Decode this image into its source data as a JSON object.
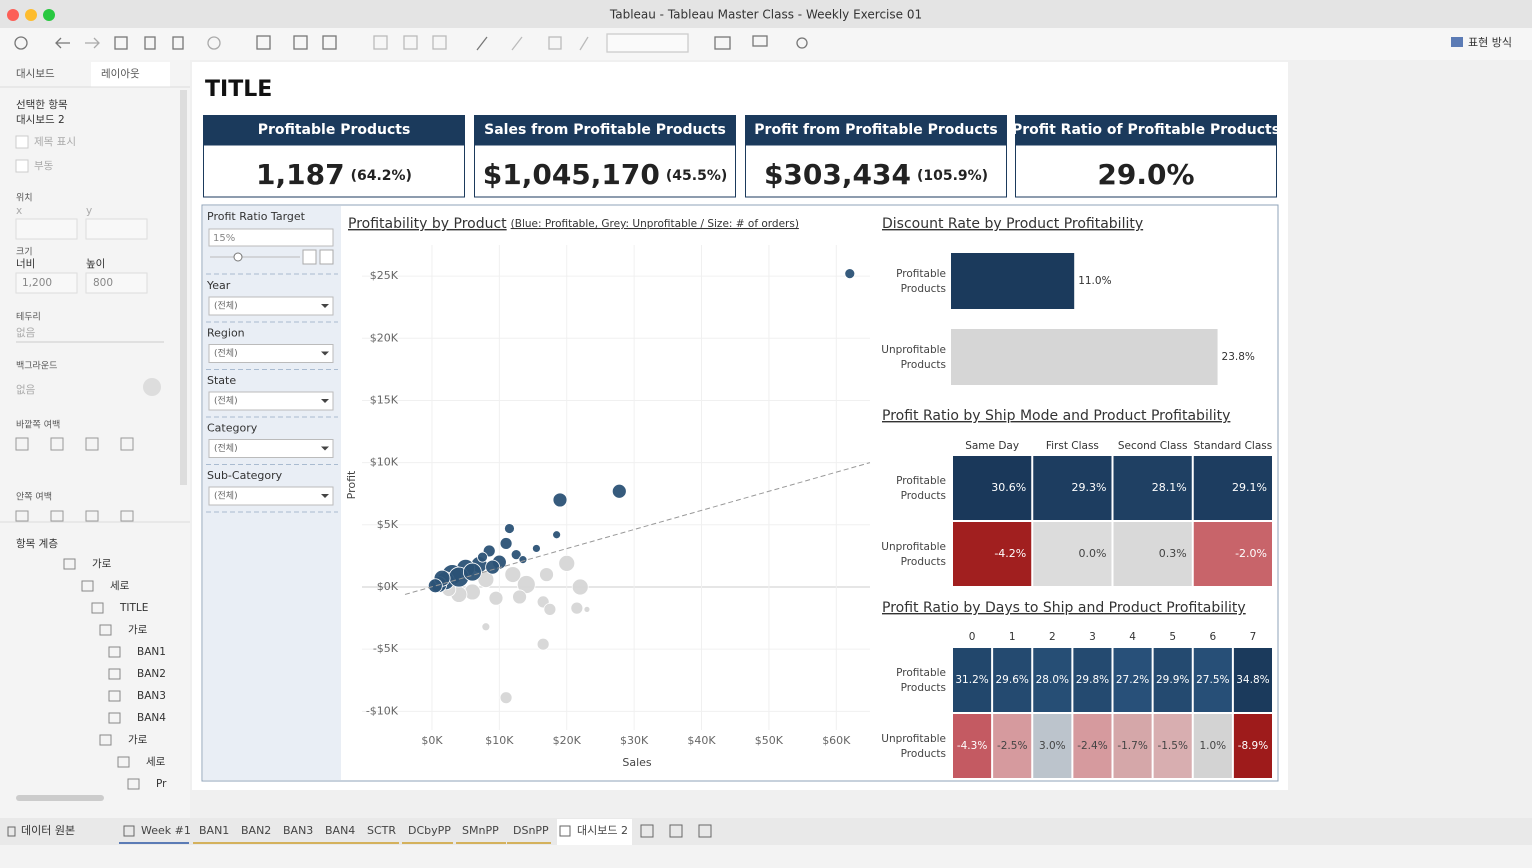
{
  "window": {
    "title": "Tableau - Tableau Master Class - Weekly Exercise 01",
    "presentation": "표현 방식"
  },
  "side_panel": {
    "tabs": [
      "대시보드",
      "레이아웃"
    ],
    "selected_label": "선택한 항목",
    "selected_name": "대시보드 2",
    "checkboxes": [
      "제목 표시",
      "부동"
    ],
    "position_label": "위치",
    "x_label": "x",
    "y_label": "y",
    "size_label": "크기",
    "width_label": "너비",
    "height_label": "높이",
    "width": "1,200",
    "height": "800",
    "border_label": "테두리",
    "border_value": "없음",
    "background_label": "백그라운드",
    "background_value": "없음",
    "outer_padding_label": "바깥쪽 여백",
    "inner_padding_label": "안쪽 여백",
    "tree_label": "항목 계층",
    "tree": [
      "가로",
      "세로",
      "TITLE",
      "가로",
      "BAN1",
      "BAN2",
      "BAN3",
      "BAN4",
      "가로",
      "세로",
      "Pr"
    ]
  },
  "dashboard": {
    "title": "TITLE",
    "kpis": [
      {
        "title": "Profitable Products",
        "value": "1,187",
        "note": "(64.2%)"
      },
      {
        "title": "Sales from Profitable Products",
        "value": "$1,045,170",
        "note": "(45.5%)"
      },
      {
        "title": "Profit from Profitable Products",
        "value": "$303,434",
        "note": "(105.9%)"
      },
      {
        "title": "Profit Ratio of Profitable Products",
        "value": "29.0%",
        "note": ""
      }
    ],
    "filters": [
      {
        "label": "Profit Ratio Target",
        "value": "15%"
      },
      {
        "label": "Year",
        "value": "(전체)"
      },
      {
        "label": "Region",
        "value": "(전체)"
      },
      {
        "label": "State",
        "value": "(전체)"
      },
      {
        "label": "Category",
        "value": "(전체)"
      },
      {
        "label": "Sub-Category",
        "value": "(전체)"
      }
    ]
  },
  "chart_data": [
    {
      "type": "scatter",
      "title": "Profitability by Product",
      "subtitle": "(Blue: Profitable, Grey: Unprofitable / Size: # of orders)",
      "x_label": "Sales",
      "y_label": "Profit",
      "xlim": [
        -4000,
        65000
      ],
      "ylim": [
        -11500,
        27500
      ],
      "xticks": [
        {
          "value": 0,
          "label": "$0K"
        },
        {
          "value": 10000,
          "label": "$10K"
        },
        {
          "value": 20000,
          "label": "$20K"
        },
        {
          "value": 30000,
          "label": "$30K"
        },
        {
          "value": 40000,
          "label": "$40K"
        },
        {
          "value": 50000,
          "label": "$50K"
        },
        {
          "value": 60000,
          "label": "$60K"
        }
      ],
      "yticks": [
        {
          "value": -10000,
          "label": "-$10K"
        },
        {
          "value": -5000,
          "label": "-$5K"
        },
        {
          "value": 0,
          "label": "$0K"
        },
        {
          "value": 5000,
          "label": "$5K"
        },
        {
          "value": 10000,
          "label": "$10K"
        },
        {
          "value": 15000,
          "label": "$15K"
        },
        {
          "value": 20000,
          "label": "$20K"
        },
        {
          "value": 25000,
          "label": "$25K"
        }
      ],
      "grid": true,
      "series": [
        {
          "color": "#2b5276",
          "x": [
            62000,
            27800,
            19000,
            11500,
            18500,
            15500,
            11000,
            8500,
            12500,
            10000,
            7000,
            5000,
            3000,
            2000,
            1000,
            4000,
            6000,
            9000,
            1500,
            500,
            13500,
            7500
          ],
          "values": [
            25200,
            7700,
            7000,
            4700,
            4200,
            3100,
            3500,
            2900,
            2600,
            2000,
            1800,
            1500,
            1000,
            500,
            200,
            800,
            1200,
            1600,
            700,
            100,
            2200,
            2400
          ],
          "sizes": [
            5,
            7,
            7,
            5,
            4,
            4,
            6,
            6,
            5,
            7,
            8,
            9,
            10,
            9,
            8,
            10,
            9,
            7,
            8,
            7,
            4,
            5
          ]
        },
        {
          "color": "#d6d6d6",
          "x": [
            20000,
            17000,
            22000,
            14000,
            13000,
            16500,
            17500,
            21500,
            23000,
            16500,
            11000,
            8000,
            9500,
            6000,
            4000,
            2500,
            8000,
            12000
          ],
          "values": [
            1900,
            1000,
            0,
            200,
            -800,
            -1200,
            -1800,
            -1700,
            -1800,
            -4600,
            -8900,
            -3200,
            -900,
            -400,
            -600,
            -200,
            600,
            1000
          ],
          "sizes": [
            8,
            7,
            8,
            9,
            7,
            6,
            6,
            6,
            3,
            6,
            6,
            4,
            7,
            8,
            8,
            7,
            8,
            8
          ]
        }
      ],
      "trend_line": {
        "color": "#999999",
        "x": [
          -4000,
          65000
        ],
        "values": [
          -600,
          10000
        ]
      }
    },
    {
      "type": "bar",
      "title": "Discount Rate by Product Profitability",
      "categories": [
        "Profitable Products",
        "Unprofitable Products"
      ],
      "values": [
        11.0,
        23.8
      ],
      "value_labels": [
        "11.0%",
        "23.8%"
      ],
      "colors": [
        "#1b3a5c",
        "#d6d6d6"
      ],
      "xlim": [
        0,
        25
      ]
    },
    {
      "type": "heatmap",
      "title": "Profit Ratio by Ship Mode and Product Profitability",
      "columns": [
        "Same Day",
        "First Class",
        "Second Class",
        "Standard Class"
      ],
      "rows": [
        "Profitable Products",
        "Unprofitable Products"
      ],
      "values": [
        [
          30.6,
          29.3,
          28.1,
          29.1
        ],
        [
          -4.2,
          0.0,
          0.3,
          -2.0
        ]
      ],
      "value_labels": [
        [
          "30.6%",
          "29.3%",
          "28.1%",
          "29.1%"
        ],
        [
          "-4.2%",
          "0.0%",
          "0.3%",
          "-2.0%"
        ]
      ],
      "colors": [
        [
          "#1a385a",
          "#1d3d60",
          "#1f4063",
          "#1d3d60"
        ],
        [
          "#a11f1f",
          "#dcdcdc",
          "#d9d9d9",
          "#c8646a"
        ]
      ]
    },
    {
      "type": "heatmap",
      "title": "Profit Ratio by Days to Ship and Product Profitability",
      "columns": [
        "0",
        "1",
        "2",
        "3",
        "4",
        "5",
        "6",
        "7"
      ],
      "rows": [
        "Profitable Products",
        "Unprofitable Products"
      ],
      "values": [
        [
          31.2,
          29.6,
          28.0,
          29.8,
          27.2,
          29.9,
          27.5,
          34.8
        ],
        [
          -4.3,
          -2.5,
          3.0,
          -2.4,
          -1.7,
          -1.5,
          1.0,
          -8.9
        ]
      ],
      "value_labels": [
        [
          "31.2%",
          "29.6%",
          "28.0%",
          "29.8%",
          "27.2%",
          "29.9%",
          "27.5%",
          "34.8%"
        ],
        [
          "-4.3%",
          "-2.5%",
          "3.0%",
          "-2.4%",
          "-1.7%",
          "-1.5%",
          "1.0%",
          "-8.9%"
        ]
      ],
      "colors": [
        [
          "#22476c",
          "#244a70",
          "#264e75",
          "#244a70",
          "#285079",
          "#244a70",
          "#274f77",
          "#1b3a5c"
        ],
        [
          "#c45a62",
          "#d69a9e",
          "#bcc4cc",
          "#d69a9e",
          "#d5a7a9",
          "#d8aeb0",
          "#d3d3d3",
          "#9e1b1b"
        ]
      ]
    }
  ],
  "bottom_tabs": [
    "데이터 원본",
    "Week #1",
    "BAN1",
    "BAN2",
    "BAN3",
    "BAN4",
    "SCTR",
    "DCbyPP",
    "SMnPP",
    "DSnPP",
    "대시보드 2"
  ]
}
